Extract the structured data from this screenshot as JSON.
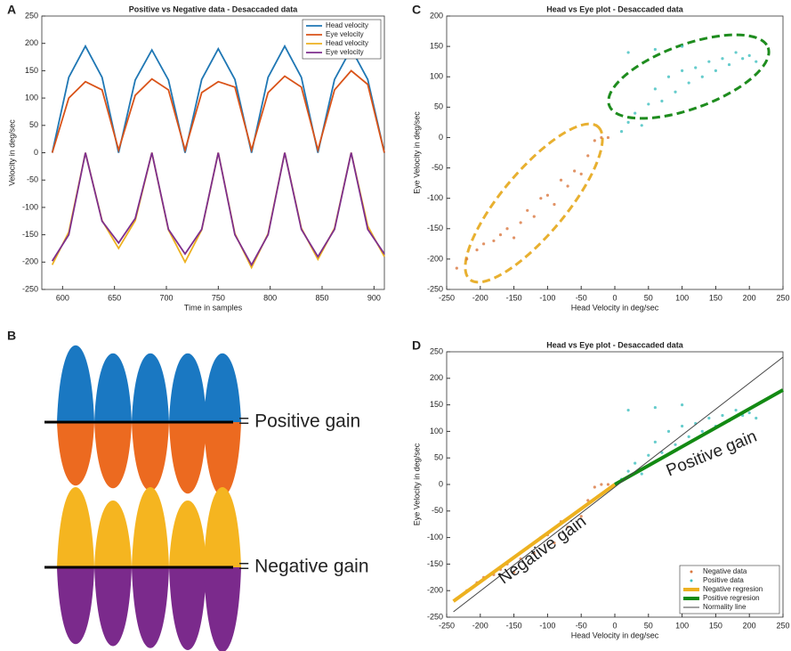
{
  "chart_data": [
    {
      "type": "line",
      "label": "A",
      "title": "Positive vs Negative data - Desaccaded data",
      "x_label": "Time in samples",
      "y_label": "Velocity in deg/sec",
      "xlim": [
        580,
        910
      ],
      "xticks": [
        600,
        650,
        700,
        750,
        800,
        850,
        900
      ],
      "ylim": [
        -250,
        250
      ],
      "yticks": [
        -250,
        -200,
        -150,
        -100,
        -50,
        0,
        50,
        100,
        150,
        200,
        250
      ],
      "legend": "upper right",
      "x": [
        590,
        606,
        622,
        638,
        654,
        670,
        686,
        702,
        718,
        734,
        750,
        766,
        782,
        798,
        814,
        830,
        846,
        862,
        878,
        894,
        910
      ],
      "series": [
        {
          "name": "Head velocity",
          "color": "#1f77b4",
          "values": [
            0,
            138,
            195,
            138,
            0,
            133,
            188,
            133,
            0,
            134,
            190,
            134,
            0,
            138,
            195,
            138,
            0,
            134,
            190,
            134,
            0
          ]
        },
        {
          "name": "Eye velocity",
          "color": "#d95319",
          "values": [
            0,
            100,
            130,
            115,
            5,
            105,
            135,
            115,
            5,
            110,
            130,
            120,
            5,
            110,
            140,
            120,
            5,
            115,
            150,
            125,
            0
          ]
        },
        {
          "name": "Head velocity",
          "color": "#edb120",
          "values": [
            -205,
            -145,
            0,
            -124,
            -175,
            -124,
            0,
            -141,
            -200,
            -141,
            0,
            -148,
            -210,
            -148,
            0,
            -138,
            -195,
            -138,
            0,
            -134,
            -190
          ]
        },
        {
          "name": "Eye velocity",
          "color": "#7e2f8e",
          "values": [
            -198,
            -150,
            0,
            -125,
            -165,
            -120,
            0,
            -140,
            -185,
            -140,
            0,
            -150,
            -205,
            -150,
            0,
            -140,
            -190,
            -140,
            0,
            -140,
            -185
          ]
        }
      ]
    },
    {
      "type": "scatter",
      "label": "C",
      "title": "Head vs Eye plot - Desaccaded data",
      "x_label": "Head Velocity in deg/sec",
      "y_label": "Eye Velocity in deg/sec",
      "xlim": [
        -250,
        250
      ],
      "xticks": [
        -250,
        -200,
        -150,
        -100,
        -50,
        0,
        50,
        100,
        150,
        200,
        250
      ],
      "ylim": [
        -250,
        200
      ],
      "yticks": [
        -250,
        -200,
        -150,
        -100,
        -50,
        0,
        50,
        100,
        150,
        200
      ],
      "series": [
        {
          "kind": "scatter",
          "color": "#d9773f",
          "x": [
            -235,
            -220,
            -205,
            -195,
            -180,
            -170,
            -160,
            -150,
            -140,
            -130,
            -120,
            -110,
            -100,
            -90,
            -80,
            -70,
            -60,
            -50,
            -40,
            -30,
            -20,
            -10
          ],
          "values": [
            -215,
            -200,
            -185,
            -175,
            -170,
            -160,
            -150,
            -165,
            -140,
            -120,
            -130,
            -100,
            -95,
            -110,
            -70,
            -80,
            -55,
            -60,
            -30,
            -5,
            0,
            0
          ]
        },
        {
          "kind": "scatter",
          "color": "#3fbfbf",
          "x": [
            10,
            20,
            30,
            40,
            50,
            60,
            70,
            80,
            90,
            100,
            110,
            120,
            130,
            140,
            150,
            160,
            170,
            180,
            190,
            200,
            210,
            20,
            60,
            100
          ],
          "values": [
            10,
            25,
            40,
            20,
            55,
            80,
            60,
            100,
            75,
            110,
            90,
            115,
            100,
            125,
            110,
            130,
            120,
            140,
            130,
            135,
            125,
            140,
            145,
            150
          ]
        }
      ]
    },
    {
      "type": "scatter",
      "label": "D",
      "title": "Head vs Eye plot - Desaccaded data",
      "x_label": "Head Velocity in deg/sec",
      "y_label": "Eye Velocity in deg/sec",
      "xlim": [
        -250,
        250
      ],
      "xticks": [
        -250,
        -200,
        -150,
        -100,
        -50,
        0,
        50,
        100,
        150,
        200,
        250
      ],
      "ylim": [
        -250,
        250
      ],
      "yticks": [
        -250,
        -200,
        -150,
        -100,
        -50,
        0,
        50,
        100,
        150,
        200,
        250
      ],
      "legend": "lower right",
      "series": [
        {
          "name": "Negative data",
          "kind": "scatter",
          "color": "#d9773f",
          "x": [
            -235,
            -220,
            -205,
            -195,
            -180,
            -170,
            -160,
            -150,
            -140,
            -130,
            -120,
            -110,
            -100,
            -90,
            -80,
            -70,
            -60,
            -50,
            -40,
            -30,
            -20,
            -10
          ],
          "values": [
            -215,
            -200,
            -185,
            -175,
            -170,
            -160,
            -150,
            -165,
            -140,
            -120,
            -130,
            -100,
            -95,
            -110,
            -70,
            -80,
            -55,
            -60,
            -30,
            -5,
            0,
            0
          ]
        },
        {
          "name": "Positive data",
          "kind": "scatter",
          "color": "#3fbfbf",
          "x": [
            10,
            20,
            30,
            40,
            50,
            60,
            70,
            80,
            90,
            100,
            110,
            120,
            130,
            140,
            150,
            160,
            170,
            180,
            190,
            200,
            210,
            20,
            60,
            100
          ],
          "values": [
            10,
            25,
            40,
            20,
            55,
            80,
            60,
            100,
            75,
            110,
            90,
            115,
            100,
            125,
            110,
            130,
            120,
            140,
            130,
            135,
            125,
            140,
            145,
            150
          ]
        },
        {
          "name": "Negative regresion",
          "kind": "line",
          "width": 4,
          "color": "#edb120",
          "x": [
            -240,
            0
          ],
          "values": [
            -220,
            0
          ]
        },
        {
          "name": "Positive regresion",
          "kind": "line",
          "width": 4,
          "color": "#138a13",
          "x": [
            0,
            250
          ],
          "values": [
            0,
            178
          ]
        },
        {
          "name": "Normality line",
          "kind": "line",
          "width": 1,
          "color": "#444444",
          "x": [
            -240,
            250
          ],
          "values": [
            -240,
            240
          ]
        }
      ],
      "annotations": [
        {
          "text": "Negative gain",
          "color": "#d9a520"
        },
        {
          "text": "Positive gain",
          "color": "#138a13"
        }
      ]
    }
  ],
  "illustration": {
    "label": "B",
    "positive_text": "= Positive gain",
    "negative_text": "= Negative gain"
  }
}
